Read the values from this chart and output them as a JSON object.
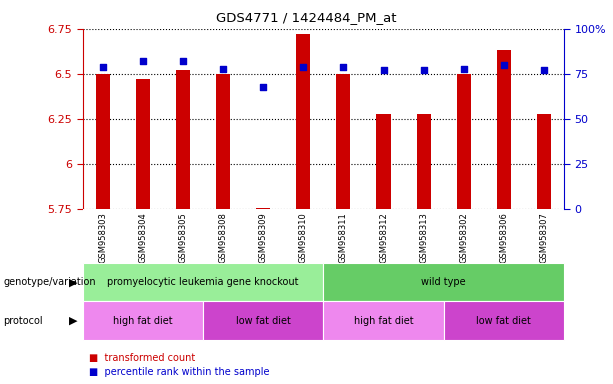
{
  "title": "GDS4771 / 1424484_PM_at",
  "samples": [
    "GSM958303",
    "GSM958304",
    "GSM958305",
    "GSM958308",
    "GSM958309",
    "GSM958310",
    "GSM958311",
    "GSM958312",
    "GSM958313",
    "GSM958302",
    "GSM958306",
    "GSM958307"
  ],
  "bar_values": [
    6.5,
    6.47,
    6.52,
    6.5,
    5.755,
    6.72,
    6.5,
    6.28,
    6.28,
    6.5,
    6.63,
    6.28
  ],
  "dot_values": [
    79,
    82,
    82,
    78,
    68,
    79,
    79,
    77,
    77,
    78,
    80,
    77
  ],
  "ylim_left": [
    5.75,
    6.75
  ],
  "ylim_right": [
    0,
    100
  ],
  "yticks_left": [
    5.75,
    6.0,
    6.25,
    6.5,
    6.75
  ],
  "yticks_right": [
    0,
    25,
    50,
    75,
    100
  ],
  "ytick_labels_left": [
    "5.75",
    "6",
    "6.25",
    "6.5",
    "6.75"
  ],
  "ytick_labels_right": [
    "0",
    "25",
    "50",
    "75",
    "100%"
  ],
  "bar_color": "#cc0000",
  "dot_color": "#0000cc",
  "bar_bottom": 5.75,
  "genotype_groups": [
    {
      "label": "promyelocytic leukemia gene knockout",
      "start": 0,
      "end": 6,
      "color": "#99ee99"
    },
    {
      "label": "wild type",
      "start": 6,
      "end": 12,
      "color": "#66cc66"
    }
  ],
  "protocol_groups": [
    {
      "label": "high fat diet",
      "start": 0,
      "end": 3,
      "color": "#ee88ee"
    },
    {
      "label": "low fat diet",
      "start": 3,
      "end": 6,
      "color": "#cc44cc"
    },
    {
      "label": "high fat diet",
      "start": 6,
      "end": 9,
      "color": "#ee88ee"
    },
    {
      "label": "low fat diet",
      "start": 9,
      "end": 12,
      "color": "#cc44cc"
    }
  ],
  "grid_color": "black",
  "grid_linestyle": "dotted",
  "background_color": "#ffffff",
  "plot_bg_color": "#ffffff",
  "xticklabel_bg": "#dddddd",
  "bar_width": 0.35
}
